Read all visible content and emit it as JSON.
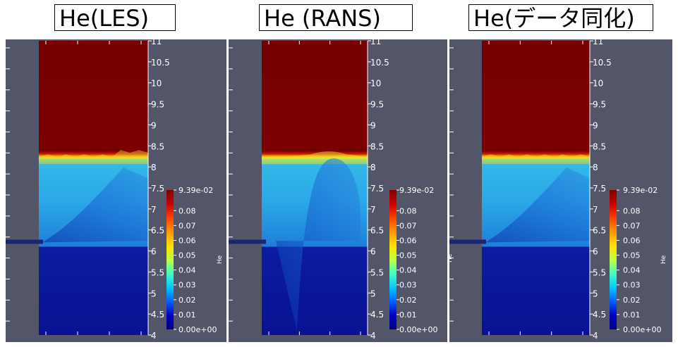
{
  "panels": [
    {
      "title": "He(LES)",
      "variant": "les"
    },
    {
      "title": "He (RANS)",
      "variant": "rans"
    },
    {
      "title": "He(データ同化)",
      "variant": "da"
    }
  ],
  "axis_ticks": [
    "11",
    "10.5",
    "10",
    "9.5",
    "9",
    "8.5",
    "8",
    "7.5",
    "7",
    "6.5",
    "6",
    "5.5",
    "5",
    "4.5",
    "4"
  ],
  "colorbar": {
    "title": "He",
    "labels": [
      "9.39e-02",
      "0.08",
      "0.07",
      "0.06",
      "0.05",
      "0.04",
      "0.03",
      "0.02",
      "0.01",
      "0.00e+00"
    ],
    "colors": [
      "#800000",
      "#cc0000",
      "#ff4000",
      "#ff9900",
      "#ffe000",
      "#bfff40",
      "#40ffbf",
      "#00c8ff",
      "#0060ff",
      "#0000c0",
      "#000080"
    ]
  },
  "colors": {
    "background": "#525668",
    "fluid_top": "#750000",
    "fluid_mid": "#2aa7e8",
    "fluid_bottom": "#0a1292",
    "injector": "#1a2770"
  }
}
